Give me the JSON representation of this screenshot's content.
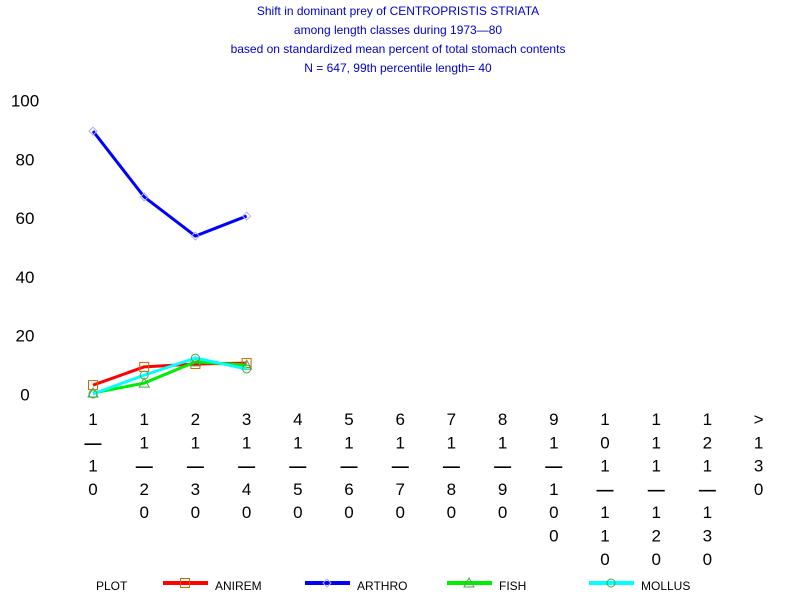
{
  "chart_data": {
    "type": "line",
    "title_lines": [
      "Shift in dominant prey of CENTROPRISTIS STRIATA",
      "among length classes during 1973—80",
      "based on standardized mean percent of  total stomach contents",
      "N =  647, 99th percentile  length= 40"
    ],
    "categories": [
      "1—10",
      "11—20",
      "21—30",
      "31—40",
      "41—50",
      "51—60",
      "61—70",
      "71—80",
      "81—90",
      "91—100",
      "101—110",
      "111—120",
      "121—130",
      ">130"
    ],
    "legend_title": "PLOT",
    "series": [
      {
        "name": "ANIREM",
        "color": "#ff0000",
        "marker": "square",
        "values": [
          3.7,
          9.9,
          10.9,
          11.2,
          null,
          null,
          null,
          null,
          null,
          null,
          null,
          null,
          null,
          null
        ]
      },
      {
        "name": "ARTHRO",
        "color": "#0000ff",
        "marker": "diamond",
        "values": [
          90.1,
          67.7,
          54.4,
          61.2,
          null,
          null,
          null,
          null,
          null,
          null,
          null,
          null,
          null,
          null
        ]
      },
      {
        "name": "FISH",
        "color": "#00ee00",
        "marker": "triangle",
        "values": [
          1,
          4.4,
          11.6,
          10.5,
          null,
          null,
          null,
          null,
          null,
          null,
          null,
          null,
          null,
          null
        ]
      },
      {
        "name": "MOLLUS",
        "color": "#00ffff",
        "marker": "circle",
        "values": [
          0.7,
          7.1,
          12.9,
          9.2,
          null,
          null,
          null,
          null,
          null,
          null,
          null,
          null,
          null,
          null
        ]
      }
    ],
    "ylim": [
      0,
      100
    ],
    "yticks": [
      0,
      20,
      40,
      60,
      80,
      100
    ],
    "grid": false
  }
}
